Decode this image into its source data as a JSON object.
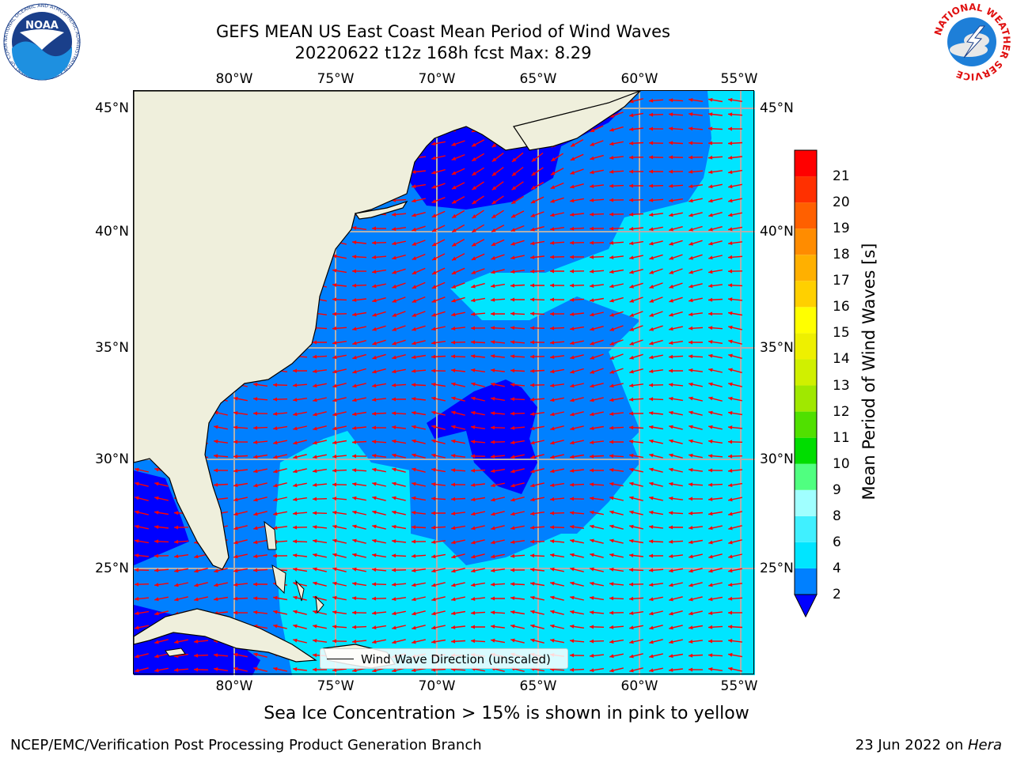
{
  "title_line1": "GEFS MEAN US East Coast Mean Period of Wind Waves",
  "title_line2": "20220622 t12z 168h fcst   Max: 8.29",
  "subtitle": "Sea Ice Concentration > 15% is shown in pink to yellow",
  "footer_left": "NCEP/EMC/Verification Post Processing Product Generation Branch",
  "footer_right_date": "23 Jun 2022 on ",
  "footer_right_host": "Hera",
  "legend_label": "Wind Wave Direction (unscaled)",
  "lon_ticks": [
    "80°W",
    "75°W",
    "70°W",
    "65°W",
    "60°W",
    "55°W"
  ],
  "lat_ticks": [
    "45°N",
    "40°N",
    "35°N",
    "30°N",
    "25°N"
  ],
  "colorbar": {
    "label": "Mean Period of Wind Waves [s]",
    "tick_labels": [
      "2",
      "4",
      "6",
      "8",
      "9",
      "10",
      "11",
      "12",
      "13",
      "14",
      "15",
      "16",
      "17",
      "18",
      "19",
      "20",
      "21"
    ],
    "colors": [
      "#0080ff",
      "#00e5ff",
      "#40f0ff",
      "#a0ffff",
      "#50ff80",
      "#00dd00",
      "#50e000",
      "#a0e800",
      "#d0f000",
      "#eef000",
      "#ffff00",
      "#ffd000",
      "#ffb000",
      "#ff8c00",
      "#ff6000",
      "#ff3000",
      "#ff0000"
    ],
    "extend_color": "#0000ff"
  },
  "colors": {
    "land": "#efefdc",
    "period_2": "#0000ff",
    "period_2_4": "#0080ff",
    "period_4_6": "#00e5ff",
    "period_6_8": "#40f0ff",
    "arrow": "#ff0000",
    "grid": "#b0b0b0"
  },
  "logos": {
    "noaa_text": "NOAA",
    "noaa_ring": "NATIONAL OCEANIC AND ATMOSPHERIC ADMINISTRATION • U.S. DEPARTMENT OF COMMERCE",
    "nws_ring": "NATIONAL WEATHER SERVICE"
  }
}
